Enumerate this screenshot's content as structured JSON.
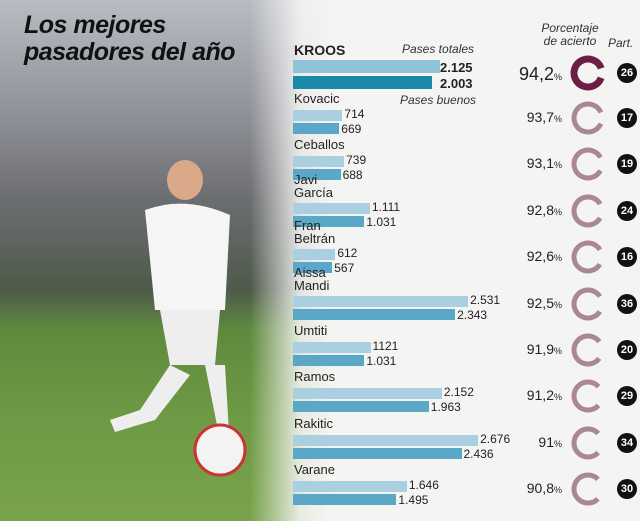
{
  "title_line1": "Los mejores",
  "title_line2": "pasadores del año",
  "headers": {
    "total": "Pases totales",
    "good": "Pases buenos",
    "pct_line1": "Porcentaje",
    "pct_line2": "de acierto",
    "matches": "Part."
  },
  "colors": {
    "total_bar": "#a9cfe0",
    "good_bar": "#5ba7c8",
    "kroos_total": "#8fc3da",
    "kroos_good": "#1a8aa8",
    "ring_highlight": "#6b1f45",
    "ring": "#a98794"
  },
  "chart_data": {
    "type": "bar",
    "orientation": "horizontal",
    "categories": [
      "KROOS",
      "Kovacic",
      "Ceballos",
      "Javi García",
      "Fran Beltrán",
      "Aissa Mandi",
      "Umtiti",
      "Ramos",
      "Rakitic",
      "Varane"
    ],
    "series": [
      {
        "name": "Pases totales",
        "values": [
          2125,
          714,
          739,
          1111,
          612,
          2531,
          1121,
          2152,
          2676,
          1646
        ],
        "labels": [
          "2.125",
          "714",
          "739",
          "1.111",
          "612",
          "2.531",
          "1121",
          "2.152",
          "2.676",
          "1.646"
        ]
      },
      {
        "name": "Pases buenos",
        "values": [
          2003,
          669,
          688,
          1031,
          567,
          2343,
          1031,
          1963,
          2436,
          1495
        ],
        "labels": [
          "2.003",
          "669",
          "688",
          "1.031",
          "567",
          "2.343",
          "1.031",
          "1.963",
          "2.436",
          "1.495"
        ]
      }
    ],
    "accuracy": [
      "94,2",
      "93,7",
      "93,1",
      "92,8",
      "92,6",
      "92,5",
      "91,9",
      "91,2",
      "91",
      "90,8"
    ],
    "accuracy_unit": "%",
    "matches": [
      "26",
      "17",
      "19",
      "24",
      "16",
      "36",
      "20",
      "29",
      "34",
      "30"
    ]
  }
}
